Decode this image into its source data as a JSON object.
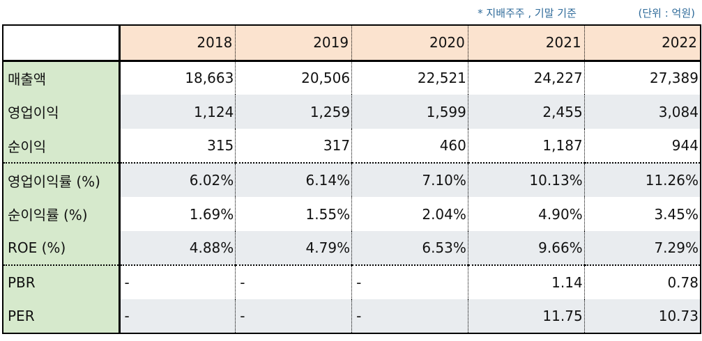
{
  "notes": {
    "basis": "* 지배주주 , 기말 기준",
    "unit": "(단위 : 억원)"
  },
  "table": {
    "years": [
      "2018",
      "2019",
      "2020",
      "2021",
      "2022"
    ],
    "rows": [
      {
        "label": "매출액",
        "values": [
          "18,663",
          "20,506",
          "22,521",
          "24,227",
          "27,389"
        ]
      },
      {
        "label": "영업이익",
        "values": [
          "1,124",
          "1,259",
          "1,599",
          "2,455",
          "3,084"
        ]
      },
      {
        "label": "순이익",
        "values": [
          "315",
          "317",
          "460",
          "1,187",
          "944"
        ]
      },
      {
        "label": "영업이익률 (%)",
        "values": [
          "6.02%",
          "6.14%",
          "7.10%",
          "10.13%",
          "11.26%"
        ]
      },
      {
        "label": "순이익률 (%)",
        "values": [
          "1.69%",
          "1.55%",
          "2.04%",
          "4.90%",
          "3.45%"
        ]
      },
      {
        "label": "ROE (%)",
        "values": [
          "4.88%",
          "4.79%",
          "6.53%",
          "9.66%",
          "7.29%"
        ]
      },
      {
        "label": "PBR",
        "values": [
          "-",
          "-",
          "-",
          "1.14",
          "0.78"
        ]
      },
      {
        "label": "PER",
        "values": [
          "-",
          "-",
          "-",
          "11.75",
          "10.73"
        ]
      }
    ]
  }
}
